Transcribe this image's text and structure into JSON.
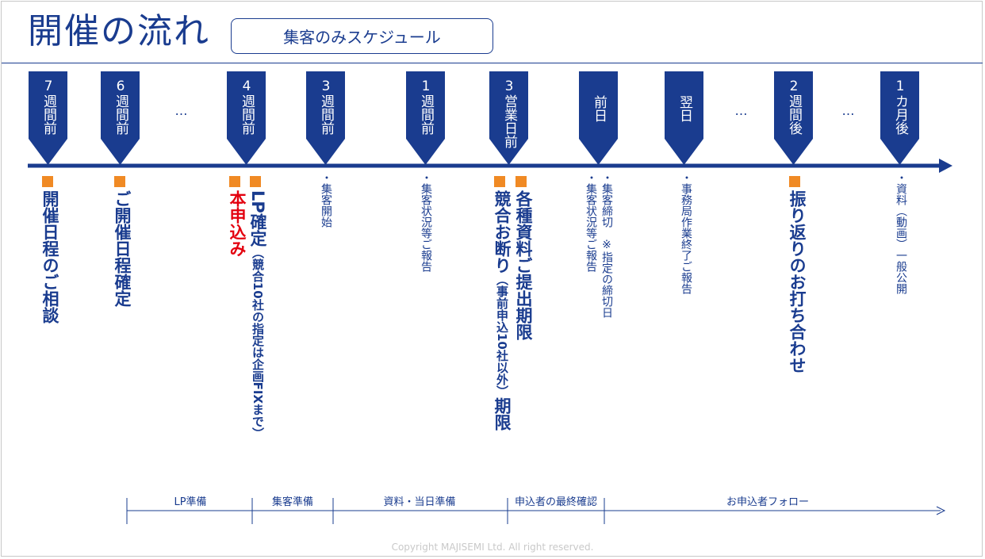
{
  "title": "開催の流れ",
  "subtitle": "集客のみスケジュール",
  "milestones": [
    "7週間前",
    "6週間前",
    "…",
    "4週間前",
    "3週間前",
    "1週間前",
    "3営業日前",
    "前日",
    "翌日",
    "…",
    "2週間後",
    "…",
    "1カ月後"
  ],
  "badges": {
    "b0": "7週間前",
    "b1": "6週間前",
    "b2": "4週間前",
    "b3": "3週間前",
    "b4": "1週間前",
    "b5": "3営業日前",
    "b6": "前日",
    "b7": "翌日",
    "b8": "2週間後",
    "b9": "1カ月後"
  },
  "gaps": {
    "g0": "…",
    "g1": "…",
    "g2": "…"
  },
  "events": {
    "e0": "開催日程のご相談",
    "e1": "ご開催日程確定",
    "e2": "本申込み",
    "e3_main": "LP確定",
    "e3_sub": "（競合10社の指定は企画FIXまで）",
    "e4": "・集客開始",
    "e5": "・集客状況等ご報告",
    "e6_main": "競合お断り",
    "e6_sub": "（事前申込10社以外）",
    "e6_end": "期限",
    "e7": "各種資料ご提出期限",
    "e8a": "・集客締切　※指定の締切日",
    "e8b": "・集客状況等ご報告",
    "e9": "・事務局作業終了ご報告",
    "e10": "振り返りのお打ち合わせ",
    "e11": "・資料（動画）一般公開"
  },
  "phases": {
    "p0": "LP準備",
    "p1": "集客準備",
    "p2": "資料・当日準備",
    "p3": "申込者の最終確認",
    "p4": "お申込者フォロー"
  },
  "copyright": "Copyright MAJISEMI Ltd. All right reserved.",
  "colors": {
    "primary": "#1a3c8f",
    "accent": "#f08a24",
    "alert": "#e3000f"
  }
}
